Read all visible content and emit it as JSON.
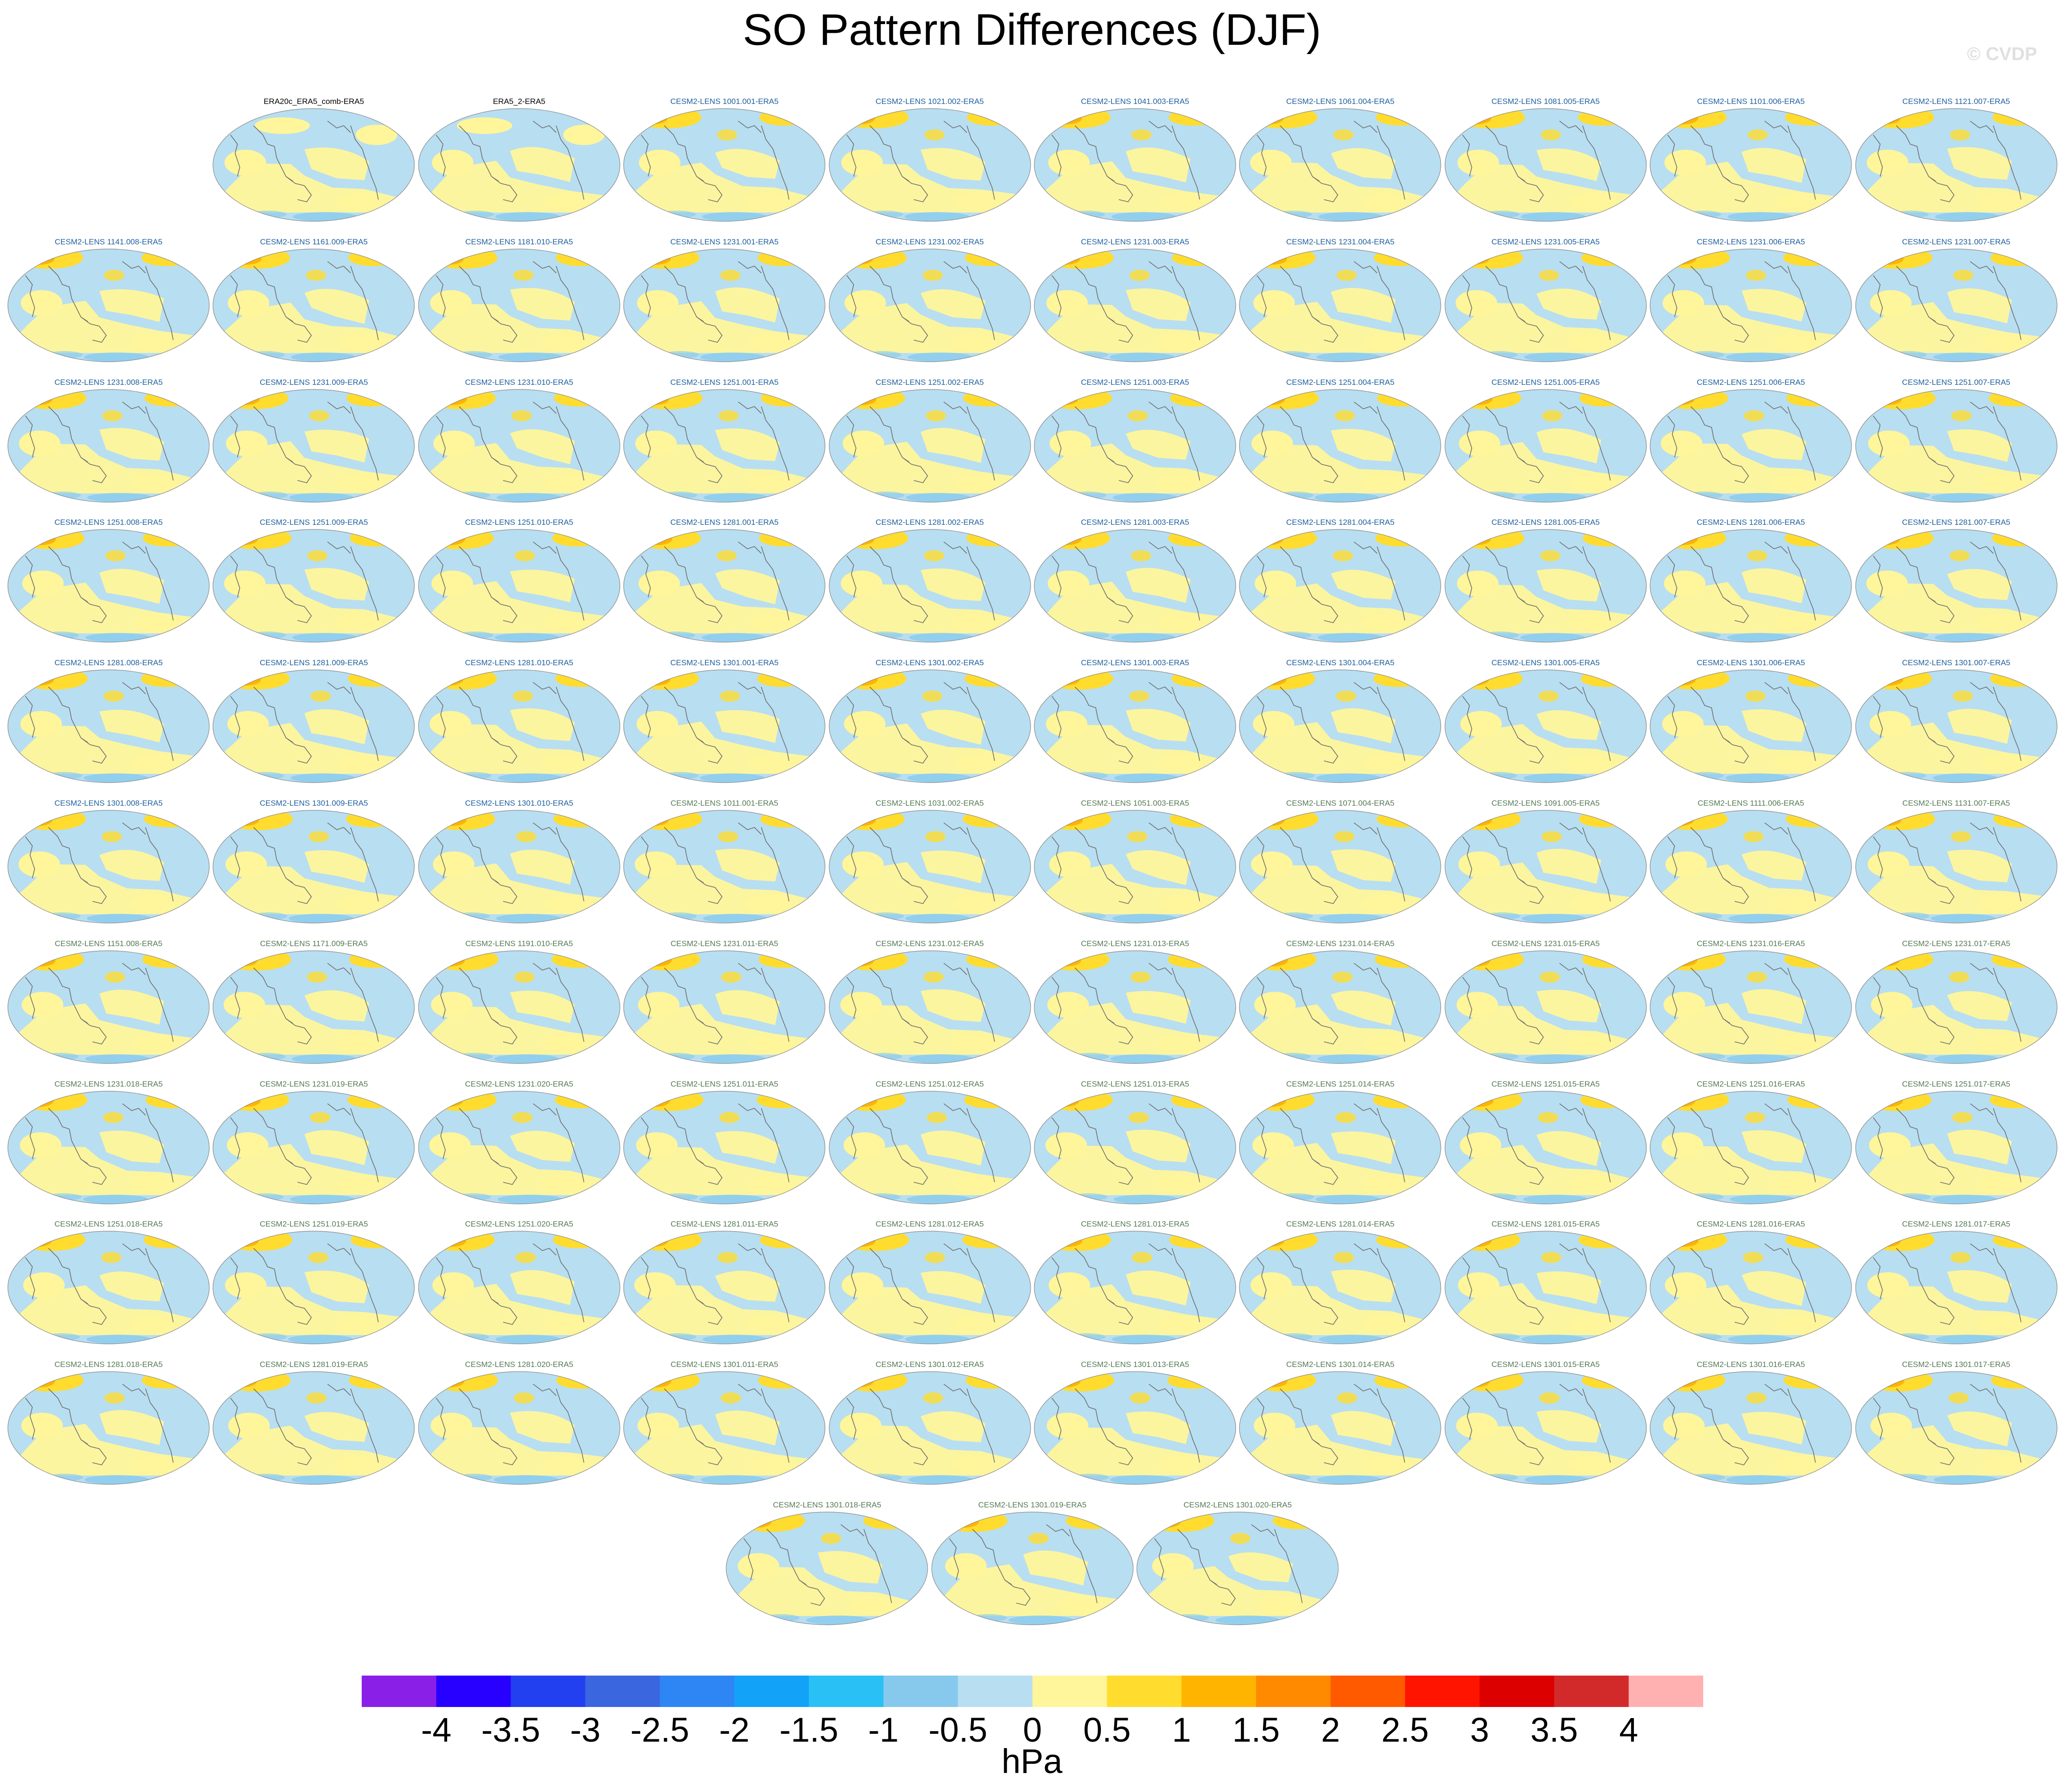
{
  "title": "SO Pattern Differences (DJF)",
  "watermark": "© CVDP",
  "colorbar": {
    "units": "hPa",
    "ticks": [
      "-4",
      "-3.5",
      "-3",
      "-2.5",
      "-2",
      "-1.5",
      "-1",
      "-0.5",
      "0",
      "0.5",
      "1",
      "1.5",
      "2",
      "2.5",
      "3",
      "3.5",
      "4"
    ],
    "colors": [
      "#8a20e8",
      "#2800ff",
      "#2340f0",
      "#3a66e0",
      "#2e86f5",
      "#12a2f7",
      "#28c0f5",
      "#86c9ec",
      "#b8def1",
      "#fff59a",
      "#ffdc2e",
      "#ffb400",
      "#ff8a00",
      "#ff5a00",
      "#ff1400",
      "#dc0000",
      "#d22a2a",
      "#ffb1b1"
    ]
  },
  "panel_title_colors": {
    "black": "#000000",
    "blue": "#1f5f9e",
    "green": "#557a55"
  },
  "rows": [
    [
      {
        "label": "ERA20c_ERA5_comb-ERA5",
        "color": "black"
      },
      {
        "label": "ERA5_2-ERA5",
        "color": "black"
      },
      {
        "label": "CESM2-LENS 1001.001-ERA5",
        "color": "blue"
      },
      {
        "label": "CESM2-LENS 1021.002-ERA5",
        "color": "blue"
      },
      {
        "label": "CESM2-LENS 1041.003-ERA5",
        "color": "blue"
      },
      {
        "label": "CESM2-LENS 1061.004-ERA5",
        "color": "blue"
      },
      {
        "label": "CESM2-LENS 1081.005-ERA5",
        "color": "blue"
      },
      {
        "label": "CESM2-LENS 1101.006-ERA5",
        "color": "blue"
      },
      {
        "label": "CESM2-LENS 1121.007-ERA5",
        "color": "blue"
      }
    ],
    [
      {
        "label": "CESM2-LENS 1141.008-ERA5",
        "color": "blue"
      },
      {
        "label": "CESM2-LENS 1161.009-ERA5",
        "color": "blue"
      },
      {
        "label": "CESM2-LENS 1181.010-ERA5",
        "color": "blue"
      },
      {
        "label": "CESM2-LENS 1231.001-ERA5",
        "color": "blue"
      },
      {
        "label": "CESM2-LENS 1231.002-ERA5",
        "color": "blue"
      },
      {
        "label": "CESM2-LENS 1231.003-ERA5",
        "color": "blue"
      },
      {
        "label": "CESM2-LENS 1231.004-ERA5",
        "color": "blue"
      },
      {
        "label": "CESM2-LENS 1231.005-ERA5",
        "color": "blue"
      },
      {
        "label": "CESM2-LENS 1231.006-ERA5",
        "color": "blue"
      },
      {
        "label": "CESM2-LENS 1231.007-ERA5",
        "color": "blue"
      }
    ],
    [
      {
        "label": "CESM2-LENS 1231.008-ERA5",
        "color": "blue"
      },
      {
        "label": "CESM2-LENS 1231.009-ERA5",
        "color": "blue"
      },
      {
        "label": "CESM2-LENS 1231.010-ERA5",
        "color": "blue"
      },
      {
        "label": "CESM2-LENS 1251.001-ERA5",
        "color": "blue"
      },
      {
        "label": "CESM2-LENS 1251.002-ERA5",
        "color": "blue"
      },
      {
        "label": "CESM2-LENS 1251.003-ERA5",
        "color": "blue"
      },
      {
        "label": "CESM2-LENS 1251.004-ERA5",
        "color": "blue"
      },
      {
        "label": "CESM2-LENS 1251.005-ERA5",
        "color": "blue"
      },
      {
        "label": "CESM2-LENS 1251.006-ERA5",
        "color": "blue"
      },
      {
        "label": "CESM2-LENS 1251.007-ERA5",
        "color": "blue"
      }
    ],
    [
      {
        "label": "CESM2-LENS 1251.008-ERA5",
        "color": "blue"
      },
      {
        "label": "CESM2-LENS 1251.009-ERA5",
        "color": "blue"
      },
      {
        "label": "CESM2-LENS 1251.010-ERA5",
        "color": "blue"
      },
      {
        "label": "CESM2-LENS 1281.001-ERA5",
        "color": "blue"
      },
      {
        "label": "CESM2-LENS 1281.002-ERA5",
        "color": "blue"
      },
      {
        "label": "CESM2-LENS 1281.003-ERA5",
        "color": "blue"
      },
      {
        "label": "CESM2-LENS 1281.004-ERA5",
        "color": "blue"
      },
      {
        "label": "CESM2-LENS 1281.005-ERA5",
        "color": "blue"
      },
      {
        "label": "CESM2-LENS 1281.006-ERA5",
        "color": "blue"
      },
      {
        "label": "CESM2-LENS 1281.007-ERA5",
        "color": "blue"
      }
    ],
    [
      {
        "label": "CESM2-LENS 1281.008-ERA5",
        "color": "blue"
      },
      {
        "label": "CESM2-LENS 1281.009-ERA5",
        "color": "blue"
      },
      {
        "label": "CESM2-LENS 1281.010-ERA5",
        "color": "blue"
      },
      {
        "label": "CESM2-LENS 1301.001-ERA5",
        "color": "blue"
      },
      {
        "label": "CESM2-LENS 1301.002-ERA5",
        "color": "blue"
      },
      {
        "label": "CESM2-LENS 1301.003-ERA5",
        "color": "blue"
      },
      {
        "label": "CESM2-LENS 1301.004-ERA5",
        "color": "blue"
      },
      {
        "label": "CESM2-LENS 1301.005-ERA5",
        "color": "blue"
      },
      {
        "label": "CESM2-LENS 1301.006-ERA5",
        "color": "blue"
      },
      {
        "label": "CESM2-LENS 1301.007-ERA5",
        "color": "blue"
      }
    ],
    [
      {
        "label": "CESM2-LENS 1301.008-ERA5",
        "color": "blue"
      },
      {
        "label": "CESM2-LENS 1301.009-ERA5",
        "color": "blue"
      },
      {
        "label": "CESM2-LENS 1301.010-ERA5",
        "color": "blue"
      },
      {
        "label": "CESM2-LENS 1011.001-ERA5",
        "color": "green"
      },
      {
        "label": "CESM2-LENS 1031.002-ERA5",
        "color": "green"
      },
      {
        "label": "CESM2-LENS 1051.003-ERA5",
        "color": "green"
      },
      {
        "label": "CESM2-LENS 1071.004-ERA5",
        "color": "green"
      },
      {
        "label": "CESM2-LENS 1091.005-ERA5",
        "color": "green"
      },
      {
        "label": "CESM2-LENS 1111.006-ERA5",
        "color": "green"
      },
      {
        "label": "CESM2-LENS 1131.007-ERA5",
        "color": "green"
      }
    ],
    [
      {
        "label": "CESM2-LENS 1151.008-ERA5",
        "color": "green"
      },
      {
        "label": "CESM2-LENS 1171.009-ERA5",
        "color": "green"
      },
      {
        "label": "CESM2-LENS 1191.010-ERA5",
        "color": "green"
      },
      {
        "label": "CESM2-LENS 1231.011-ERA5",
        "color": "green"
      },
      {
        "label": "CESM2-LENS 1231.012-ERA5",
        "color": "green"
      },
      {
        "label": "CESM2-LENS 1231.013-ERA5",
        "color": "green"
      },
      {
        "label": "CESM2-LENS 1231.014-ERA5",
        "color": "green"
      },
      {
        "label": "CESM2-LENS 1231.015-ERA5",
        "color": "green"
      },
      {
        "label": "CESM2-LENS 1231.016-ERA5",
        "color": "green"
      },
      {
        "label": "CESM2-LENS 1231.017-ERA5",
        "color": "green"
      }
    ],
    [
      {
        "label": "CESM2-LENS 1231.018-ERA5",
        "color": "green"
      },
      {
        "label": "CESM2-LENS 1231.019-ERA5",
        "color": "green"
      },
      {
        "label": "CESM2-LENS 1231.020-ERA5",
        "color": "green"
      },
      {
        "label": "CESM2-LENS 1251.011-ERA5",
        "color": "green"
      },
      {
        "label": "CESM2-LENS 1251.012-ERA5",
        "color": "green"
      },
      {
        "label": "CESM2-LENS 1251.013-ERA5",
        "color": "green"
      },
      {
        "label": "CESM2-LENS 1251.014-ERA5",
        "color": "green"
      },
      {
        "label": "CESM2-LENS 1251.015-ERA5",
        "color": "green"
      },
      {
        "label": "CESM2-LENS 1251.016-ERA5",
        "color": "green"
      },
      {
        "label": "CESM2-LENS 1251.017-ERA5",
        "color": "green"
      }
    ],
    [
      {
        "label": "CESM2-LENS 1251.018-ERA5",
        "color": "green"
      },
      {
        "label": "CESM2-LENS 1251.019-ERA5",
        "color": "green"
      },
      {
        "label": "CESM2-LENS 1251.020-ERA5",
        "color": "green"
      },
      {
        "label": "CESM2-LENS 1281.011-ERA5",
        "color": "green"
      },
      {
        "label": "CESM2-LENS 1281.012-ERA5",
        "color": "green"
      },
      {
        "label": "CESM2-LENS 1281.013-ERA5",
        "color": "green"
      },
      {
        "label": "CESM2-LENS 1281.014-ERA5",
        "color": "green"
      },
      {
        "label": "CESM2-LENS 1281.015-ERA5",
        "color": "green"
      },
      {
        "label": "CESM2-LENS 1281.016-ERA5",
        "color": "green"
      },
      {
        "label": "CESM2-LENS 1281.017-ERA5",
        "color": "green"
      }
    ],
    [
      {
        "label": "CESM2-LENS 1281.018-ERA5",
        "color": "green"
      },
      {
        "label": "CESM2-LENS 1281.019-ERA5",
        "color": "green"
      },
      {
        "label": "CESM2-LENS 1281.020-ERA5",
        "color": "green"
      },
      {
        "label": "CESM2-LENS 1301.011-ERA5",
        "color": "green"
      },
      {
        "label": "CESM2-LENS 1301.012-ERA5",
        "color": "green"
      },
      {
        "label": "CESM2-LENS 1301.013-ERA5",
        "color": "green"
      },
      {
        "label": "CESM2-LENS 1301.014-ERA5",
        "color": "green"
      },
      {
        "label": "CESM2-LENS 1301.015-ERA5",
        "color": "green"
      },
      {
        "label": "CESM2-LENS 1301.016-ERA5",
        "color": "green"
      },
      {
        "label": "CESM2-LENS 1301.017-ERA5",
        "color": "green"
      }
    ],
    [
      {
        "label": "CESM2-LENS 1301.018-ERA5",
        "color": "green"
      },
      {
        "label": "CESM2-LENS 1301.019-ERA5",
        "color": "green"
      },
      {
        "label": "CESM2-LENS 1301.020-ERA5",
        "color": "green"
      }
    ]
  ]
}
